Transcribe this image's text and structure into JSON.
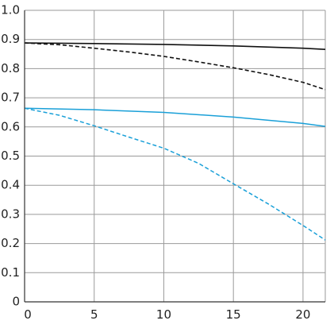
{
  "chart_data": {
    "type": "line",
    "title": "",
    "xlabel": "",
    "ylabel": "",
    "xlim": [
      0,
      21.6
    ],
    "ylim": [
      0,
      1.0
    ],
    "grid": true,
    "x_ticks": [
      0,
      5,
      10,
      15,
      20
    ],
    "x_tick_labels": [
      "0",
      "5",
      "10",
      "15",
      "20"
    ],
    "y_ticks": [
      0,
      0.1,
      0.2,
      0.3,
      0.4,
      0.5,
      0.6,
      0.7,
      0.8,
      0.9,
      1.0
    ],
    "y_tick_labels": [
      "0",
      "0.1",
      "0.2",
      "0.3",
      "0.4",
      "0.5",
      "0.6",
      "0.7",
      "0.8",
      "0.9",
      "1.0"
    ],
    "series": [
      {
        "color": "#111111",
        "dash": "solid",
        "x": [
          0,
          5,
          10,
          15,
          20,
          21.6
        ],
        "y": [
          0.888,
          0.886,
          0.883,
          0.878,
          0.87,
          0.866
        ]
      },
      {
        "color": "#111111",
        "dash": "dashed",
        "x": [
          0,
          2.5,
          5,
          7.5,
          10,
          12.5,
          15,
          17.5,
          20,
          21.6
        ],
        "y": [
          0.888,
          0.882,
          0.87,
          0.857,
          0.842,
          0.823,
          0.803,
          0.78,
          0.753,
          0.728
        ]
      },
      {
        "color": "#1aa0d8",
        "dash": "solid",
        "x": [
          0,
          5,
          10,
          15,
          20,
          21.6
        ],
        "y": [
          0.664,
          0.659,
          0.65,
          0.634,
          0.612,
          0.602
        ]
      },
      {
        "color": "#1aa0d8",
        "dash": "dashed",
        "x": [
          0,
          2.5,
          5,
          7.5,
          10,
          12.5,
          15,
          17.5,
          20,
          21.6
        ],
        "y": [
          0.664,
          0.64,
          0.604,
          0.565,
          0.527,
          0.475,
          0.405,
          0.336,
          0.262,
          0.212
        ]
      }
    ]
  }
}
